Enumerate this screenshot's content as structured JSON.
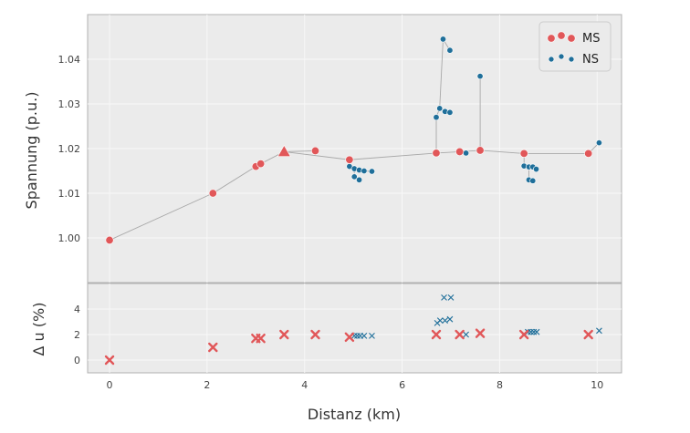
{
  "colors": {
    "ms": "#e15759",
    "ns": "#1f6f9a",
    "panel_bg": "#ebebeb",
    "grid": "#f8f8f8",
    "line": "#a8a8a8",
    "border": "#b0b0b0"
  },
  "chart_data": [
    {
      "type": "scatter",
      "ylabel": "Spannung (p.u.)",
      "ylim": [
        0.99,
        1.05
      ],
      "yticks": [
        1.0,
        1.01,
        1.02,
        1.03,
        1.04
      ],
      "ytick_labels": [
        "1.00",
        "1.01",
        "1.02",
        "1.03",
        "1.04"
      ],
      "legend": [
        {
          "label": "MS",
          "series": "MS"
        },
        {
          "label": "NS",
          "series": "NS"
        }
      ],
      "legend_position": "top-right",
      "edges": [
        [
          0,
          2.12
        ],
        [
          2.12,
          3.0
        ],
        [
          3.0,
          3.1
        ],
        [
          3.1,
          3.58
        ],
        [
          3.58,
          4.22
        ],
        [
          3.58,
          4.92
        ],
        [
          4.92,
          6.7
        ],
        [
          6.7,
          7.18
        ],
        [
          7.18,
          7.6
        ],
        [
          7.6,
          8.5
        ],
        [
          8.5,
          9.82
        ]
      ],
      "ms_nodes": [
        {
          "x": 0.0,
          "y": 0.9995
        },
        {
          "x": 2.12,
          "y": 1.01
        },
        {
          "x": 3.0,
          "y": 1.016
        },
        {
          "x": 3.1,
          "y": 1.0166
        },
        {
          "x": 3.58,
          "y": 1.0193,
          "marker": "triangle"
        },
        {
          "x": 4.22,
          "y": 1.0195
        },
        {
          "x": 4.92,
          "y": 1.0175
        },
        {
          "x": 6.7,
          "y": 1.019
        },
        {
          "x": 7.18,
          "y": 1.0193
        },
        {
          "x": 7.6,
          "y": 1.0196
        },
        {
          "x": 8.5,
          "y": 1.0189
        },
        {
          "x": 9.82,
          "y": 1.0189
        }
      ],
      "ns_lines": [
        [
          [
            4.92,
            1.0175
          ],
          [
            4.92,
            1.016
          ],
          [
            5.02,
            1.0155
          ],
          [
            5.12,
            1.0152
          ],
          [
            5.22,
            1.015
          ],
          [
            5.38,
            1.0149
          ]
        ],
        [
          [
            5.02,
            1.0155
          ],
          [
            5.02,
            1.0137
          ],
          [
            5.12,
            1.013
          ]
        ],
        [
          [
            6.7,
            1.019
          ],
          [
            6.7,
            1.027
          ],
          [
            6.77,
            1.029
          ],
          [
            6.88,
            1.0283
          ],
          [
            6.98,
            1.0281
          ]
        ],
        [
          [
            6.77,
            1.029
          ],
          [
            6.84,
            1.0445
          ],
          [
            6.98,
            1.042
          ]
        ],
        [
          [
            7.18,
            1.0193
          ],
          [
            7.31,
            1.019
          ]
        ],
        [
          [
            7.6,
            1.0196
          ],
          [
            7.6,
            1.0362
          ]
        ],
        [
          [
            8.5,
            1.0189
          ],
          [
            8.5,
            1.0161
          ],
          [
            8.6,
            1.0159
          ],
          [
            8.68,
            1.0159
          ],
          [
            8.75,
            1.0154
          ]
        ],
        [
          [
            8.6,
            1.0159
          ],
          [
            8.6,
            1.013
          ],
          [
            8.68,
            1.0128
          ]
        ],
        [
          [
            9.82,
            1.0189
          ],
          [
            10.04,
            1.0213
          ]
        ]
      ],
      "ns_points": [
        {
          "x": 4.92,
          "y": 1.016
        },
        {
          "x": 5.02,
          "y": 1.0155
        },
        {
          "x": 5.12,
          "y": 1.0152
        },
        {
          "x": 5.22,
          "y": 1.015
        },
        {
          "x": 5.38,
          "y": 1.0149
        },
        {
          "x": 5.02,
          "y": 1.0137
        },
        {
          "x": 5.12,
          "y": 1.013
        },
        {
          "x": 6.7,
          "y": 1.027
        },
        {
          "x": 6.77,
          "y": 1.029
        },
        {
          "x": 6.88,
          "y": 1.0283
        },
        {
          "x": 6.98,
          "y": 1.0281
        },
        {
          "x": 6.84,
          "y": 1.0445
        },
        {
          "x": 6.98,
          "y": 1.042
        },
        {
          "x": 7.31,
          "y": 1.019
        },
        {
          "x": 7.6,
          "y": 1.0362
        },
        {
          "x": 8.5,
          "y": 1.0161
        },
        {
          "x": 8.6,
          "y": 1.0159
        },
        {
          "x": 8.68,
          "y": 1.0159
        },
        {
          "x": 8.75,
          "y": 1.0154
        },
        {
          "x": 8.6,
          "y": 1.013
        },
        {
          "x": 8.68,
          "y": 1.0128
        },
        {
          "x": 10.04,
          "y": 1.0213
        }
      ]
    },
    {
      "type": "scatter",
      "ylabel": "Δ u (%)",
      "xlabel": "Distanz (km)",
      "xlim": [
        -0.45,
        10.5
      ],
      "ylim": [
        -1.0,
        6.0
      ],
      "xticks": [
        0,
        2,
        4,
        6,
        8,
        10
      ],
      "xtick_labels": [
        "0",
        "2",
        "4",
        "6",
        "8",
        "10"
      ],
      "yticks": [
        0,
        2,
        4
      ],
      "ytick_labels": [
        "0",
        "2",
        "4"
      ],
      "ms_points": [
        {
          "x": 0.0,
          "y": 0.0
        },
        {
          "x": 2.12,
          "y": 1.0
        },
        {
          "x": 3.0,
          "y": 1.7
        },
        {
          "x": 3.1,
          "y": 1.7
        },
        {
          "x": 3.58,
          "y": 2.0
        },
        {
          "x": 4.22,
          "y": 2.0
        },
        {
          "x": 4.92,
          "y": 1.8
        },
        {
          "x": 6.7,
          "y": 2.0
        },
        {
          "x": 7.18,
          "y": 2.0
        },
        {
          "x": 7.6,
          "y": 2.1
        },
        {
          "x": 8.5,
          "y": 2.0
        },
        {
          "x": 9.82,
          "y": 2.0
        }
      ],
      "ns_points": [
        {
          "x": 5.02,
          "y": 1.9
        },
        {
          "x": 5.08,
          "y": 1.9
        },
        {
          "x": 5.14,
          "y": 1.9
        },
        {
          "x": 5.22,
          "y": 1.9
        },
        {
          "x": 5.38,
          "y": 1.9
        },
        {
          "x": 6.72,
          "y": 2.9
        },
        {
          "x": 6.78,
          "y": 3.1
        },
        {
          "x": 6.88,
          "y": 3.1
        },
        {
          "x": 6.98,
          "y": 3.2
        },
        {
          "x": 6.86,
          "y": 4.9
        },
        {
          "x": 7.0,
          "y": 4.9
        },
        {
          "x": 7.31,
          "y": 2.0
        },
        {
          "x": 8.58,
          "y": 2.2
        },
        {
          "x": 8.64,
          "y": 2.2
        },
        {
          "x": 8.7,
          "y": 2.2
        },
        {
          "x": 8.76,
          "y": 2.2
        },
        {
          "x": 10.04,
          "y": 2.3
        }
      ]
    }
  ]
}
